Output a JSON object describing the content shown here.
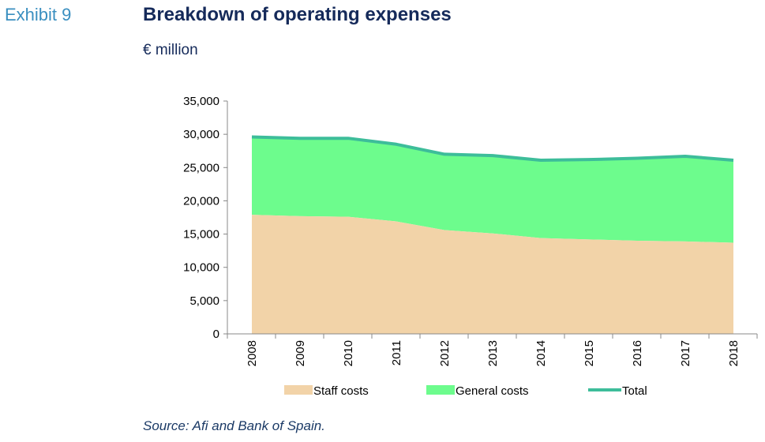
{
  "header": {
    "exhibit": "Exhibit 9",
    "title": "Breakdown of operating expenses",
    "unit": "€ million"
  },
  "footer": {
    "source": "Source: Afi and Bank of Spain."
  },
  "chart_data": {
    "type": "area",
    "categories": [
      "2008",
      "2009",
      "2010",
      "2011",
      "2012",
      "2013",
      "2014",
      "2015",
      "2016",
      "2017",
      "2018"
    ],
    "series": [
      {
        "name": "Staff costs",
        "kind": "stacked-area",
        "color": "#f2d3a8",
        "values": [
          17900,
          17700,
          17600,
          16900,
          15600,
          15100,
          14400,
          14200,
          14000,
          13900,
          13700
        ]
      },
      {
        "name": "General costs",
        "kind": "stacked-area",
        "color": "#6dfc8d",
        "values": [
          11700,
          11700,
          11800,
          11600,
          11400,
          11700,
          11700,
          12000,
          12400,
          12800,
          12400
        ]
      },
      {
        "name": "Total",
        "kind": "line",
        "color": "#3dbd9a",
        "values": [
          29600,
          29400,
          29400,
          28500,
          27000,
          26800,
          26100,
          26200,
          26400,
          26700,
          26100
        ]
      }
    ],
    "ylim": [
      0,
      35000
    ],
    "yticks": [
      "0",
      "5,000",
      "10,000",
      "15,000",
      "20,000",
      "25,000",
      "30,000",
      "35,000"
    ],
    "ytick_values": [
      0,
      5000,
      10000,
      15000,
      20000,
      25000,
      30000,
      35000
    ],
    "legend": {
      "position": "bottom"
    },
    "grid": false
  }
}
